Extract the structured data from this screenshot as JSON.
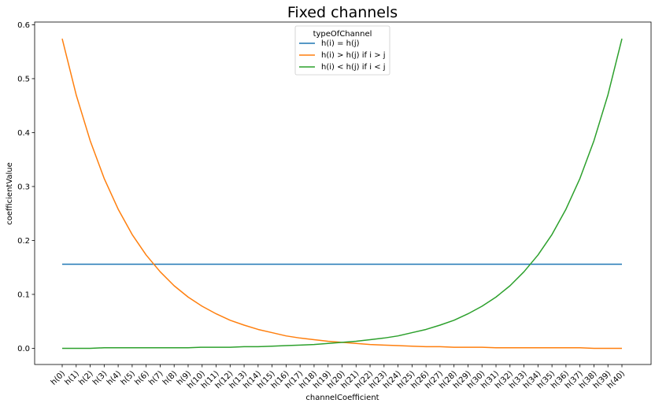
{
  "chart_data": {
    "type": "line",
    "title": "Fixed channels",
    "xlabel": "channelCoefficient",
    "ylabel": "coefficientValue",
    "ylim": [
      -0.03,
      0.605
    ],
    "yticks": [
      0.0,
      0.1,
      0.2,
      0.3,
      0.4,
      0.5,
      0.6
    ],
    "grid": false,
    "legend_title": "typeOfChannel",
    "legend_placement": "top-center",
    "categories": [
      "h(0)",
      "h(1)",
      "h(2)",
      "h(3)",
      "h(4)",
      "h(5)",
      "h(6)",
      "h(7)",
      "h(8)",
      "h(9)",
      "h(10)",
      "h(11)",
      "h(12)",
      "h(13)",
      "h(14)",
      "h(15)",
      "h(16)",
      "h(17)",
      "h(18)",
      "h(19)",
      "h(20)",
      "h(21)",
      "h(22)",
      "h(23)",
      "h(24)",
      "h(25)",
      "h(26)",
      "h(27)",
      "h(28)",
      "h(29)",
      "h(30)",
      "h(31)",
      "h(32)",
      "h(33)",
      "h(34)",
      "h(35)",
      "h(36)",
      "h(37)",
      "h(38)",
      "h(39)",
      "h(40)"
    ],
    "series": [
      {
        "name": "h(i) = h(j)",
        "color": "#1f77b4",
        "values": [
          0.156,
          0.156,
          0.156,
          0.156,
          0.156,
          0.156,
          0.156,
          0.156,
          0.156,
          0.156,
          0.156,
          0.156,
          0.156,
          0.156,
          0.156,
          0.156,
          0.156,
          0.156,
          0.156,
          0.156,
          0.156,
          0.156,
          0.156,
          0.156,
          0.156,
          0.156,
          0.156,
          0.156,
          0.156,
          0.156,
          0.156,
          0.156,
          0.156,
          0.156,
          0.156,
          0.156,
          0.156,
          0.156,
          0.156,
          0.156,
          0.156
        ]
      },
      {
        "name": "h(i) > h(j) if i > j",
        "color": "#ff7f0e",
        "values": [
          0.574,
          0.47,
          0.385,
          0.315,
          0.258,
          0.211,
          0.173,
          0.142,
          0.116,
          0.095,
          0.078,
          0.064,
          0.052,
          0.043,
          0.035,
          0.029,
          0.023,
          0.019,
          0.016,
          0.013,
          0.011,
          0.009,
          0.007,
          0.006,
          0.005,
          0.004,
          0.003,
          0.003,
          0.002,
          0.002,
          0.002,
          0.001,
          0.001,
          0.001,
          0.001,
          0.001,
          0.001,
          0.001,
          0.0,
          0.0,
          0.0
        ]
      },
      {
        "name": "h(i) < h(j) if i < j",
        "color": "#2ca02c",
        "values": [
          0.0,
          0.0,
          0.0,
          0.001,
          0.001,
          0.001,
          0.001,
          0.001,
          0.001,
          0.001,
          0.002,
          0.002,
          0.002,
          0.003,
          0.003,
          0.004,
          0.005,
          0.006,
          0.007,
          0.009,
          0.011,
          0.013,
          0.016,
          0.019,
          0.023,
          0.029,
          0.035,
          0.043,
          0.052,
          0.064,
          0.078,
          0.095,
          0.116,
          0.142,
          0.173,
          0.211,
          0.258,
          0.315,
          0.385,
          0.47,
          0.574
        ]
      }
    ]
  }
}
